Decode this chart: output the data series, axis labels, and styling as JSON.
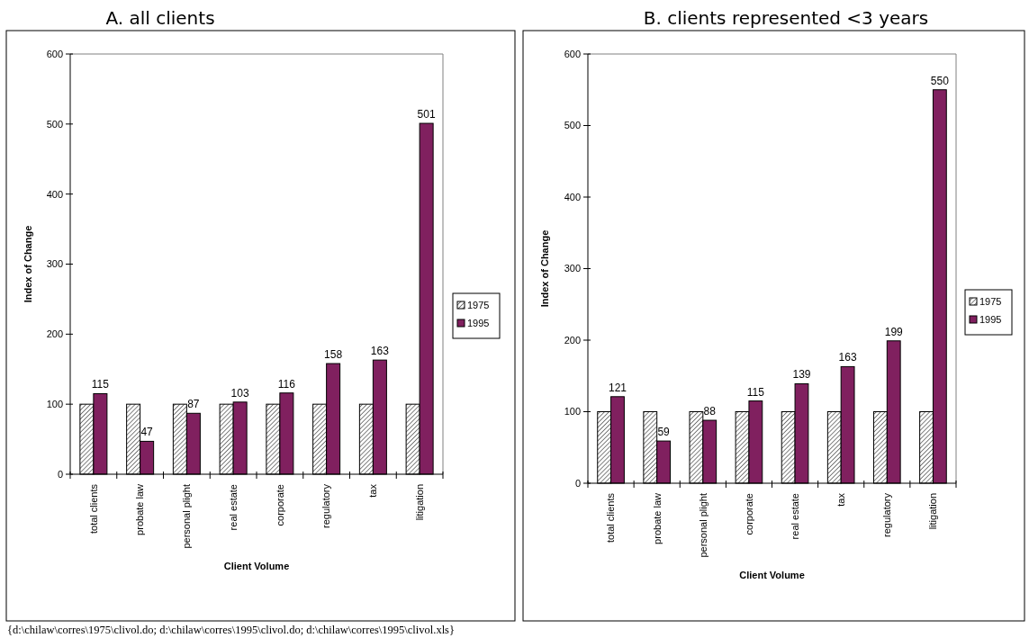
{
  "chart_data": [
    {
      "type": "bar",
      "title": "A. all clients",
      "xlabel": "Client Volume",
      "ylabel": "Index of Change",
      "categories": [
        "total clients",
        "probate law",
        "personal plight",
        "real estate",
        "corporate",
        "regulatory",
        "tax",
        "litigation"
      ],
      "series": [
        {
          "name": "1975",
          "color": "#000000",
          "values": [
            100,
            100,
            100,
            100,
            100,
            100,
            100,
            100
          ]
        },
        {
          "name": "1995",
          "color": "#80205f",
          "values": [
            115,
            47,
            87,
            103,
            116,
            158,
            163,
            501
          ],
          "value_labels": [
            "115",
            "47",
            "87",
            "103",
            "116",
            "158",
            "163",
            "501"
          ]
        }
      ],
      "ylim": [
        0,
        600
      ],
      "yticks": [
        0,
        100,
        200,
        300,
        400,
        500,
        600
      ],
      "legend": "right",
      "annotations": [
        "{d:\\chilaw\\corres\\1975\\clivol.do; d:\\chilaw\\corres\\1995\\clivol.do; d:\\chilaw\\corres\\1995\\clivol.xls}"
      ]
    },
    {
      "type": "bar",
      "title": "B. clients represented <3 years",
      "xlabel": "Client Volume",
      "ylabel": "Index of Change",
      "categories": [
        "total clients",
        "probate law",
        "personal plight",
        "corporate",
        "real estate",
        "tax",
        "regulatory",
        "litigation"
      ],
      "series": [
        {
          "name": "1975",
          "color": "#000000",
          "values": [
            100,
            100,
            100,
            100,
            100,
            100,
            100,
            100
          ]
        },
        {
          "name": "1995",
          "color": "#80205f",
          "values": [
            121,
            59,
            88,
            115,
            139,
            163,
            199,
            550
          ],
          "value_labels": [
            "121",
            "59",
            "88",
            "115",
            "139",
            "163",
            "199",
            "550"
          ]
        }
      ],
      "ylim": [
        0,
        600
      ],
      "yticks": [
        0,
        100,
        200,
        300,
        400,
        500,
        600
      ],
      "legend": "right"
    }
  ]
}
